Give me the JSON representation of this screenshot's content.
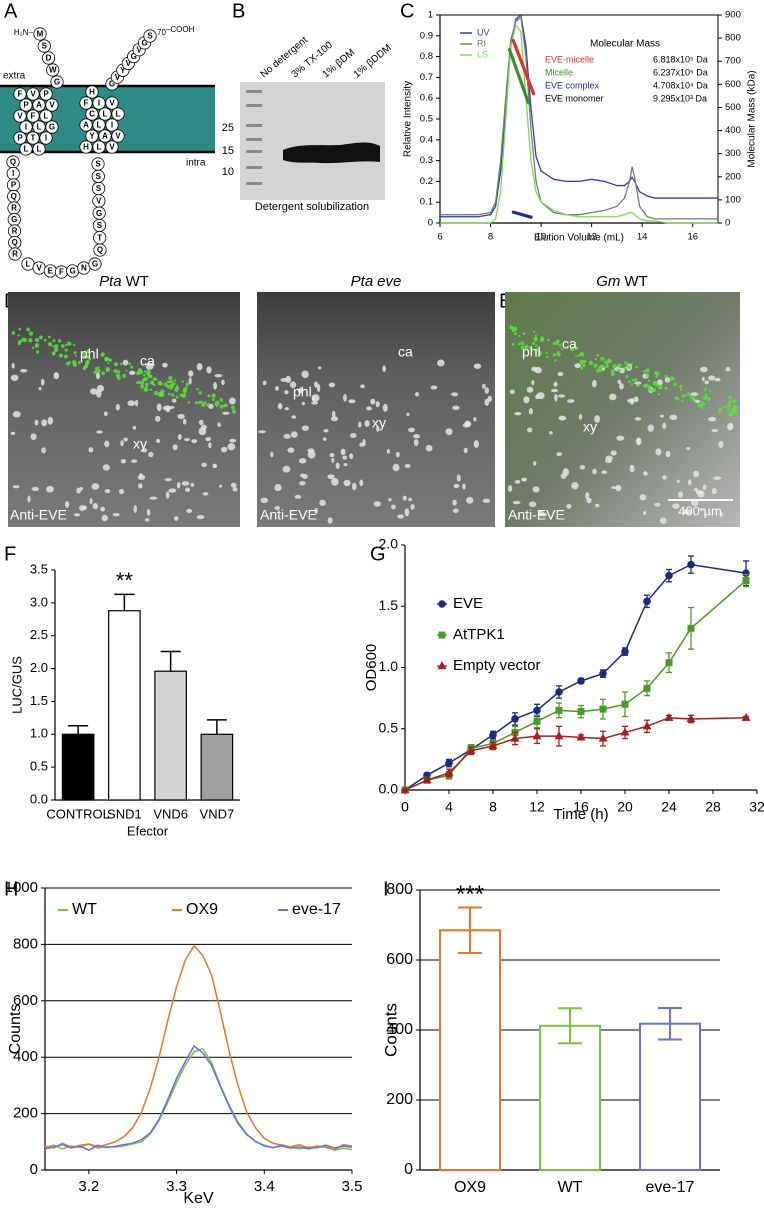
{
  "panels": {
    "A": {
      "label": "A",
      "n_term": "H₂N–",
      "c_term": "–COOH",
      "residue_number": "70",
      "extra": "extra",
      "intra": "intra",
      "residues": [
        "M",
        "S",
        "D",
        "W",
        "G",
        "F",
        "V",
        "P",
        "P",
        "A",
        "V",
        "V",
        "F",
        "L",
        "I",
        "L",
        "G",
        "P",
        "T",
        "I",
        "L",
        "L",
        "Q",
        "I",
        "P",
        "Q",
        "R",
        "G",
        "R",
        "Q",
        "R",
        "L",
        "V",
        "E",
        "F",
        "G",
        "N",
        "G",
        "Q",
        "T",
        "S",
        "G",
        "V",
        "S",
        "S",
        "S",
        "H",
        "L",
        "V",
        "Y",
        "A",
        "V",
        "A",
        "L",
        "I",
        "C",
        "L",
        "L",
        "F",
        "I",
        "V",
        "H",
        "G",
        "V",
        "Y",
        "V",
        "G",
        "V",
        "G",
        "S"
      ]
    },
    "B": {
      "label": "B",
      "lanes": [
        "No detergent",
        "3% TX-100",
        "1% βDM",
        "1% βDDM"
      ],
      "markers": [
        "25",
        "15",
        "10"
      ],
      "caption": "Detergent solubilization"
    },
    "D": {
      "label": "D",
      "images": [
        {
          "species": "Pta",
          "line": "WT",
          "labels": [
            "phl",
            "ca",
            "xy"
          ],
          "stain": "Anti-EVE"
        },
        {
          "species": "Pta",
          "line": "eve",
          "labels": [
            "phl",
            "ca",
            "xy"
          ],
          "stain": "Anti-EVE"
        }
      ]
    },
    "E": {
      "label": "E",
      "image": {
        "species": "Gm",
        "line": "WT",
        "labels": [
          "phl",
          "ca",
          "xy"
        ],
        "stain": "Anti-EVE",
        "scale": "400 µm"
      }
    }
  },
  "chart_data": [
    {
      "panel": "C",
      "type": "line",
      "legend": "upper left",
      "x": [
        6,
        7,
        7.5,
        8,
        8.2,
        8.4,
        8.6,
        8.8,
        9.0,
        9.2,
        9.4,
        9.6,
        9.8,
        10,
        10.5,
        11,
        11.5,
        12,
        12.5,
        13,
        13.3,
        13.5,
        13.6,
        13.7,
        13.9,
        14.2,
        14.5,
        15,
        16,
        17
      ],
      "xlim": [
        6,
        17
      ],
      "xticks": [
        6,
        8,
        10,
        12,
        14,
        16
      ],
      "ylim": [
        0,
        1
      ],
      "yticks": [
        0,
        0.1,
        0.2,
        0.3,
        0.4,
        0.5,
        0.6,
        0.7,
        0.8,
        0.9,
        1
      ],
      "y2lim": [
        0,
        900
      ],
      "y2ticks": [
        0,
        100,
        200,
        300,
        400,
        500,
        600,
        700,
        800,
        900
      ],
      "x_label": "Elution Volume (mL)",
      "y_label": "Relative Intensity",
      "y2_label": "Molecular Mass (kDa)",
      "series": [
        {
          "name": "UV",
          "color": "#2a3fb5",
          "values": [
            0.03,
            0.03,
            0.03,
            0.04,
            0.08,
            0.25,
            0.55,
            0.85,
            0.98,
            1.0,
            0.85,
            0.55,
            0.32,
            0.25,
            0.21,
            0.2,
            0.2,
            0.21,
            0.2,
            0.18,
            0.18,
            0.2,
            0.22,
            0.2,
            0.15,
            0.13,
            0.12,
            0.12,
            0.12,
            0.12
          ]
        },
        {
          "name": "RI",
          "color": "#7a7a7a",
          "values": [
            0.04,
            0.04,
            0.04,
            0.05,
            0.1,
            0.3,
            0.6,
            0.88,
            0.97,
            0.99,
            0.8,
            0.45,
            0.2,
            0.1,
            0.05,
            0.04,
            0.04,
            0.05,
            0.06,
            0.08,
            0.12,
            0.2,
            0.27,
            0.22,
            0.08,
            0.03,
            0.02,
            0.02,
            0.02,
            0.02
          ]
        },
        {
          "name": "LS",
          "color": "#7ed957",
          "values": [
            0,
            0,
            0,
            0,
            0.02,
            0.15,
            0.5,
            0.85,
            0.95,
            0.92,
            0.6,
            0.3,
            0.15,
            0.1,
            0.06,
            0.04,
            0.03,
            0.03,
            0.03,
            0.03,
            0.04,
            0.05,
            0.05,
            0.04,
            0.02,
            0.01,
            0.01,
            0,
            0,
            0
          ]
        }
      ],
      "mass_title": "Molecular Mass",
      "mass_series": [
        {
          "name": "EVE-micelle",
          "color": "#e8302a",
          "label": "6.818x10⁵ Da",
          "x": [
            8.9,
            9.7
          ],
          "values": [
            790,
            560
          ],
          "axis": "y2"
        },
        {
          "name": "Micelle",
          "color": "#3a8f2a",
          "label": "6.237x10⁵ Da",
          "x": [
            8.75,
            9.5
          ],
          "values": [
            750,
            520
          ],
          "axis": "y2"
        },
        {
          "name": "EVE complex",
          "color": "#1f2f8f",
          "label": "4.708x10⁴ Da",
          "x": [
            8.9,
            9.6
          ],
          "values": [
            47,
            25
          ],
          "axis": "y2"
        },
        {
          "name": "EVE monomer",
          "label": "9.295x10³ Da"
        }
      ]
    },
    {
      "panel": "F",
      "type": "bar",
      "bar_style": "filled",
      "error_style": "up",
      "categories": [
        "CONTROL",
        "SND1",
        "VND6",
        "VND7"
      ],
      "values": [
        1.0,
        2.88,
        1.96,
        1.0
      ],
      "errors": [
        0.13,
        0.25,
        0.3,
        0.22
      ],
      "colors": [
        "#000000",
        "#ffffff",
        "#d3d3d3",
        "#a0a0a0"
      ],
      "ylim": [
        0,
        3.5
      ],
      "yticks": [
        {
          "value": 0,
          "label": "0.0"
        },
        0.5,
        {
          "value": 1,
          "label": "1.0"
        },
        1.5,
        {
          "value": 2,
          "label": "2.0"
        },
        2.5,
        {
          "value": 3,
          "label": "3.0"
        },
        3.5
      ],
      "x_label": "Efector",
      "y_label": "LUC/GUS",
      "annotation": "**"
    },
    {
      "panel": "G",
      "type": "line",
      "legend": "upper left",
      "x": [
        0,
        2,
        4,
        6,
        8,
        10,
        12,
        14,
        16,
        18,
        20,
        22,
        24,
        26,
        31
      ],
      "xlim": [
        0,
        32
      ],
      "xticks": [
        0,
        4,
        8,
        12,
        16,
        20,
        24,
        28,
        32
      ],
      "ylim": [
        0,
        2
      ],
      "yticks": [
        {
          "value": 0,
          "label": "0.0"
        },
        0.5,
        {
          "value": 1,
          "label": "1.0"
        },
        1.5,
        {
          "value": 2,
          "label": "2.0"
        }
      ],
      "x_label": "Time (h)",
      "y_label": "OD600",
      "series": [
        {
          "name": "EVE",
          "color": "#1c2a80",
          "marker": "circle",
          "values": [
            0,
            0.12,
            0.22,
            0.33,
            0.45,
            0.58,
            0.65,
            0.8,
            0.89,
            0.95,
            1.13,
            1.54,
            1.75,
            1.84,
            1.77
          ],
          "errors": [
            0,
            0.02,
            0.03,
            0.03,
            0.03,
            0.05,
            0.05,
            0.05,
            0.02,
            0.03,
            0.03,
            0.05,
            0.05,
            0.07,
            0.1
          ]
        },
        {
          "name": "AtTPK1",
          "color": "#4c9a2a",
          "marker": "square",
          "values": [
            0,
            0.08,
            0.12,
            0.34,
            0.38,
            0.47,
            0.56,
            0.65,
            0.64,
            0.66,
            0.7,
            0.83,
            1.04,
            1.32,
            1.71
          ],
          "errors": [
            0,
            0.02,
            0.03,
            0.03,
            0.03,
            0.05,
            0.05,
            0.06,
            0.05,
            0.08,
            0.1,
            0.06,
            0.08,
            0.17,
            0.05
          ]
        },
        {
          "name": "Empty vector",
          "color": "#a32020",
          "marker": "triangle",
          "values": [
            0,
            0.08,
            0.14,
            0.32,
            0.36,
            0.42,
            0.44,
            0.44,
            0.43,
            0.42,
            0.47,
            0.52,
            0.59,
            0.58,
            0.59
          ],
          "errors": [
            0,
            0.02,
            0.03,
            0.03,
            0.03,
            0.05,
            0.06,
            0.08,
            0.02,
            0.06,
            0.05,
            0.05,
            0.02,
            0.03,
            0.01
          ]
        }
      ]
    },
    {
      "panel": "H",
      "type": "line",
      "legend": "top",
      "grid": true,
      "x": [
        3.15,
        3.16,
        3.17,
        3.18,
        3.19,
        3.2,
        3.21,
        3.22,
        3.23,
        3.24,
        3.25,
        3.26,
        3.27,
        3.28,
        3.29,
        3.3,
        3.31,
        3.32,
        3.33,
        3.34,
        3.35,
        3.36,
        3.37,
        3.38,
        3.39,
        3.4,
        3.41,
        3.42,
        3.43,
        3.44,
        3.45,
        3.46,
        3.47,
        3.48,
        3.49,
        3.5
      ],
      "xlim": [
        3.15,
        3.5
      ],
      "xticks": [
        3.2,
        3.3,
        3.4,
        3.5
      ],
      "ylim": [
        0,
        1000
      ],
      "yticks": [
        0,
        200,
        400,
        600,
        800,
        1000
      ],
      "x_label": "KeV",
      "y_label": "Counts",
      "series": [
        {
          "name": "WT",
          "color": "#7cc242",
          "values": [
            80,
            88,
            75,
            85,
            80,
            92,
            78,
            83,
            81,
            86,
            92,
            100,
            128,
            175,
            240,
            310,
            372,
            420,
            430,
            380,
            300,
            230,
            170,
            128,
            100,
            88,
            78,
            90,
            80,
            75,
            82,
            78,
            85,
            70,
            78,
            72
          ]
        },
        {
          "name": "OX9",
          "color": "#e8762d",
          "values": [
            85,
            78,
            95,
            80,
            88,
            92,
            82,
            90,
            100,
            118,
            150,
            205,
            290,
            400,
            530,
            650,
            745,
            795,
            760,
            690,
            560,
            420,
            300,
            205,
            150,
            112,
            95,
            88,
            82,
            90,
            78,
            85,
            80,
            72,
            90,
            85
          ]
        },
        {
          "name": "eve-17",
          "color": "#6a6fe0",
          "values": [
            75,
            82,
            90,
            78,
            85,
            70,
            88,
            80,
            84,
            90,
            95,
            108,
            132,
            180,
            250,
            325,
            385,
            440,
            415,
            370,
            295,
            225,
            165,
            125,
            102,
            85,
            80,
            85,
            78,
            82,
            75,
            80,
            88,
            78,
            85,
            80
          ]
        }
      ]
    },
    {
      "panel": "I",
      "type": "bar",
      "bar_style": "outline",
      "error_style": "both",
      "grid": true,
      "categories": [
        "OX9",
        "WT",
        "eve-17"
      ],
      "values": [
        685,
        412,
        418
      ],
      "errors": [
        65,
        50,
        45
      ],
      "colors": [
        "#e8762d",
        "#7cc242",
        "#6a6fe0"
      ],
      "ylim": [
        0,
        800
      ],
      "yticks": [
        0,
        200,
        400,
        600,
        800
      ],
      "y_label": "Counts",
      "annotation": "***"
    }
  ]
}
